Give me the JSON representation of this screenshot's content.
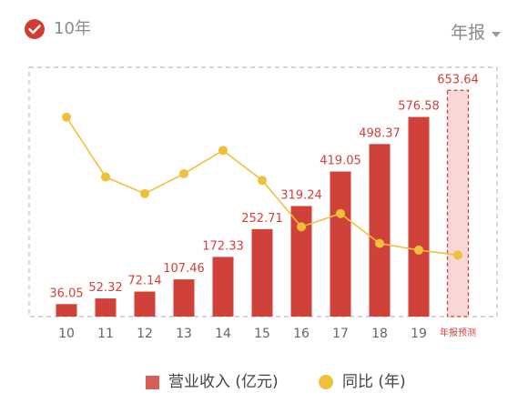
{
  "header": {
    "period_label": "10年",
    "report_select_label": "年报"
  },
  "legend": {
    "bar_label": "营业收入 (亿元)",
    "line_label": "同比 (年)"
  },
  "colors": {
    "bar": "#d0413a",
    "forecast_bar_fill": "#f7d8d6",
    "forecast_bar_border": "#d0413a",
    "line": "#f0c03a",
    "value_label": "#d0413a",
    "axis_label": "#666666",
    "dashed_frame": "#c8c8c8",
    "check_badge": "#d33b35"
  },
  "chart_data": {
    "type": "bar",
    "categories": [
      "10",
      "11",
      "12",
      "13",
      "14",
      "15",
      "16",
      "17",
      "18",
      "19",
      "年报预测"
    ],
    "grid": false,
    "legend_position": "bottom",
    "series": [
      {
        "name": "营业收入 (亿元)",
        "type": "bar",
        "values": [
          36.05,
          52.32,
          72.14,
          107.46,
          172.33,
          252.71,
          319.24,
          419.05,
          498.37,
          576.58,
          653.64
        ],
        "labels": [
          "36.05",
          "52.32",
          "72.14",
          "107.46",
          "172.33",
          "252.71",
          "319.24",
          "419.05",
          "498.37",
          "576.58",
          "653.64"
        ],
        "forecast_index": 10
      },
      {
        "name": "同比 (年)",
        "type": "line",
        "values": [
          60,
          42,
          37,
          43,
          50,
          41,
          27,
          31,
          22,
          20,
          18.5
        ]
      }
    ],
    "bar_ylim": [
      0,
      720
    ],
    "line_ylim": [
      0,
      75
    ]
  }
}
